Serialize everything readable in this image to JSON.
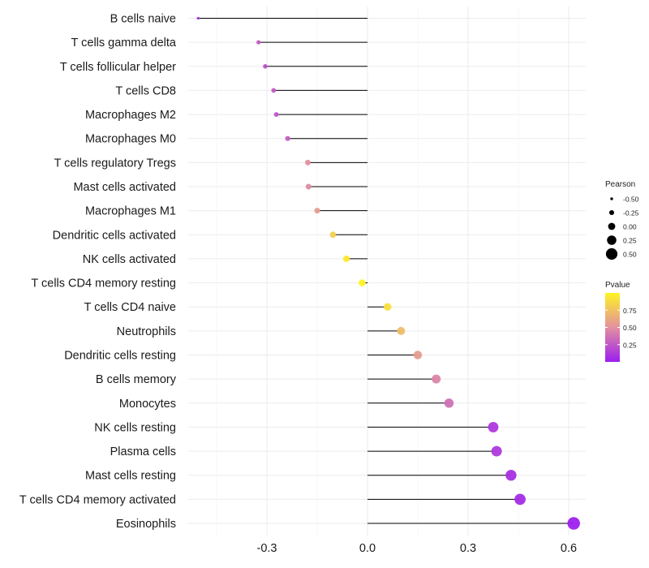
{
  "chart_data": {
    "type": "lollipop",
    "title": "",
    "xlabel": "",
    "ylabel": "",
    "xlim": [
      -0.52,
      0.65
    ],
    "x_ticks": [
      -0.3,
      0.0,
      0.3,
      0.6
    ],
    "x_tick_labels": [
      "-0.3",
      "0.0",
      "0.3",
      "0.6"
    ],
    "grid": true,
    "points": [
      {
        "category": "B cells naive",
        "pearson": -0.505,
        "pvalue": 0.06
      },
      {
        "category": "T cells gamma delta",
        "pearson": -0.325,
        "pvalue": 0.28
      },
      {
        "category": "T cells follicular helper",
        "pearson": -0.305,
        "pvalue": 0.22
      },
      {
        "category": "T cells CD8",
        "pearson": -0.28,
        "pvalue": 0.27
      },
      {
        "category": "Macrophages M2",
        "pearson": -0.272,
        "pvalue": 0.25
      },
      {
        "category": "Macrophages M0",
        "pearson": -0.238,
        "pvalue": 0.28
      },
      {
        "category": "T cells regulatory  Tregs",
        "pearson": -0.178,
        "pvalue": 0.5
      },
      {
        "category": "Mast cells activated",
        "pearson": -0.176,
        "pvalue": 0.48
      },
      {
        "category": "Macrophages M1",
        "pearson": -0.15,
        "pvalue": 0.57
      },
      {
        "category": "Dendritic cells activated",
        "pearson": -0.103,
        "pvalue": 0.82
      },
      {
        "category": "NK cells activated",
        "pearson": -0.063,
        "pvalue": 0.95
      },
      {
        "category": "T cells CD4 memory resting",
        "pearson": -0.016,
        "pvalue": 1.0
      },
      {
        "category": "T cells CD4 naive",
        "pearson": 0.06,
        "pvalue": 0.9
      },
      {
        "category": "Neutrophils",
        "pearson": 0.1,
        "pvalue": 0.72
      },
      {
        "category": "Dendritic cells resting",
        "pearson": 0.15,
        "pvalue": 0.56
      },
      {
        "category": "B cells memory",
        "pearson": 0.205,
        "pvalue": 0.45
      },
      {
        "category": "Monocytes",
        "pearson": 0.243,
        "pvalue": 0.36
      },
      {
        "category": "NK cells resting",
        "pearson": 0.375,
        "pvalue": 0.12
      },
      {
        "category": "Plasma cells",
        "pearson": 0.385,
        "pvalue": 0.12
      },
      {
        "category": "Mast cells resting",
        "pearson": 0.428,
        "pvalue": 0.08
      },
      {
        "category": "T cells CD4 memory activated",
        "pearson": 0.455,
        "pvalue": 0.06
      },
      {
        "category": "Eosinophils",
        "pearson": 0.615,
        "pvalue": 0.01
      }
    ],
    "legend": {
      "position": "right",
      "size": {
        "title": "Pearson",
        "values": [
          -0.5,
          -0.25,
          0.0,
          0.25,
          0.5
        ],
        "labels": [
          "-0.50",
          "-0.25",
          "0.00",
          "0.25",
          "0.50"
        ]
      },
      "color": {
        "title": "Pvalue",
        "range": [
          0.0,
          1.0
        ],
        "ticks": [
          0.25,
          0.5,
          0.75
        ],
        "tick_labels": [
          "0.25",
          "0.50",
          "0.75"
        ],
        "low_color": "#9d1ef0",
        "mid_color": "#e3909f",
        "high_color": "#fff323"
      }
    }
  }
}
